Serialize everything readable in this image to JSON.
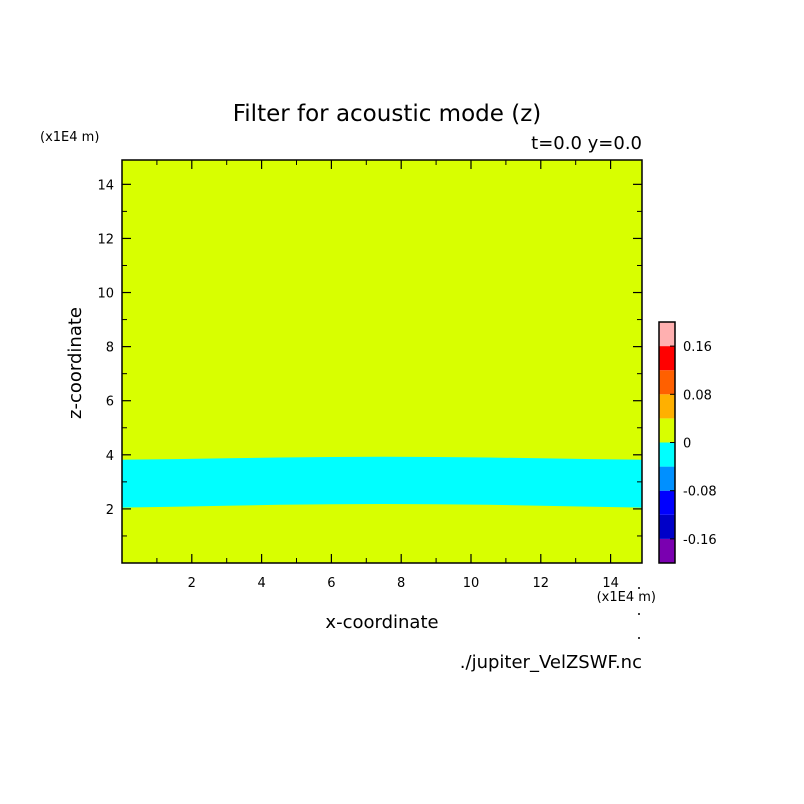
{
  "chart_data": {
    "type": "heatmap",
    "title": "Filter for acoustic mode (z)",
    "subtitle": "t=0.0 y=0.0",
    "xlabel": "x-coordinate",
    "ylabel": "z-coordinate",
    "x_unit": "(x1E4 m)",
    "y_unit": "(x1E4 m)",
    "xlim": [
      0,
      14.9
    ],
    "ylim": [
      0,
      14.9
    ],
    "x_ticks": [
      2,
      4,
      6,
      8,
      10,
      12,
      14
    ],
    "y_ticks": [
      2,
      4,
      6,
      8,
      10,
      12,
      14
    ],
    "grid": false,
    "background_color": "#d8ff00",
    "band": {
      "color": "#00ffff",
      "level_range": [
        -0.04,
        0
      ],
      "x": [
        0.0,
        1.5,
        3.0,
        4.5,
        6.0,
        7.5,
        9.0,
        10.5,
        12.0,
        13.5,
        14.9
      ],
      "z_bottom": [
        2.05,
        2.08,
        2.12,
        2.15,
        2.17,
        2.18,
        2.17,
        2.15,
        2.12,
        2.08,
        2.05
      ],
      "z_top": [
        3.82,
        3.84,
        3.87,
        3.9,
        3.92,
        3.93,
        3.92,
        3.9,
        3.87,
        3.84,
        3.82
      ]
    },
    "colorbar": {
      "levels": [
        -0.2,
        -0.16,
        -0.12,
        -0.08,
        -0.04,
        0,
        0.04,
        0.08,
        0.12,
        0.16,
        0.2
      ],
      "colors": [
        "#7a00b0",
        "#0000c8",
        "#0000ff",
        "#0090ff",
        "#00ffff",
        "#d8ff00",
        "#ffb000",
        "#ff6000",
        "#ff0000",
        "#ffb0b0"
      ],
      "tick_values": [
        -0.16,
        -0.08,
        0,
        0.08,
        0.16
      ],
      "tick_labels": [
        "-0.16",
        "-0.08",
        "0",
        "0.08",
        "0.16"
      ]
    },
    "source": "./jupiter_VelZSWF.nc"
  }
}
